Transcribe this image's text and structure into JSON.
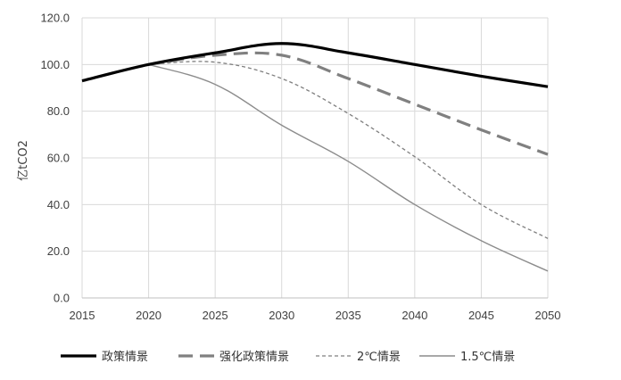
{
  "chart_data": {
    "type": "line",
    "title": "",
    "xlabel": "",
    "ylabel": "亿tCO2",
    "x": [
      2015,
      2020,
      2025,
      2030,
      2035,
      2040,
      2045,
      2050
    ],
    "x_ticks": [
      "2015",
      "2020",
      "2025",
      "2030",
      "2035",
      "2040",
      "2045",
      "2050"
    ],
    "xlim": [
      2015,
      2050
    ],
    "ylim": [
      0,
      120
    ],
    "y_ticks": [
      "0.0",
      "20.0",
      "40.0",
      "60.0",
      "80.0",
      "100.0",
      "120.0"
    ],
    "y_tick_values": [
      0,
      20,
      40,
      60,
      80,
      100,
      120
    ],
    "grid": true,
    "legend_position": "bottom",
    "series": [
      {
        "name": "政策情景",
        "color": "#000000",
        "style": "solid-thick",
        "x": [
          2015,
          2020,
          2025,
          2030,
          2035,
          2040,
          2045,
          2050
        ],
        "values": [
          93.0,
          100.0,
          105.0,
          109.0,
          105.0,
          100.0,
          95.0,
          90.5
        ]
      },
      {
        "name": "强化政策情景",
        "color": "#808080",
        "style": "long-dash",
        "x": [
          2020,
          2025,
          2030,
          2035,
          2040,
          2045,
          2050
        ],
        "values": [
          100.0,
          104.0,
          104.0,
          94.0,
          83.0,
          72.0,
          61.5
        ]
      },
      {
        "name": "2℃情景",
        "color": "#7f7f7f",
        "style": "short-dash",
        "x": [
          2020,
          2025,
          2030,
          2035,
          2040,
          2045,
          2050
        ],
        "values": [
          100.0,
          101.0,
          94.0,
          79.0,
          60.5,
          40.0,
          25.5
        ]
      },
      {
        "name": "1.5℃情景",
        "color": "#8c8c8c",
        "style": "solid-thin",
        "x": [
          2020,
          2025,
          2030,
          2035,
          2040,
          2045,
          2050
        ],
        "values": [
          100.0,
          91.5,
          74.0,
          58.5,
          40.0,
          24.5,
          11.5
        ]
      }
    ]
  }
}
